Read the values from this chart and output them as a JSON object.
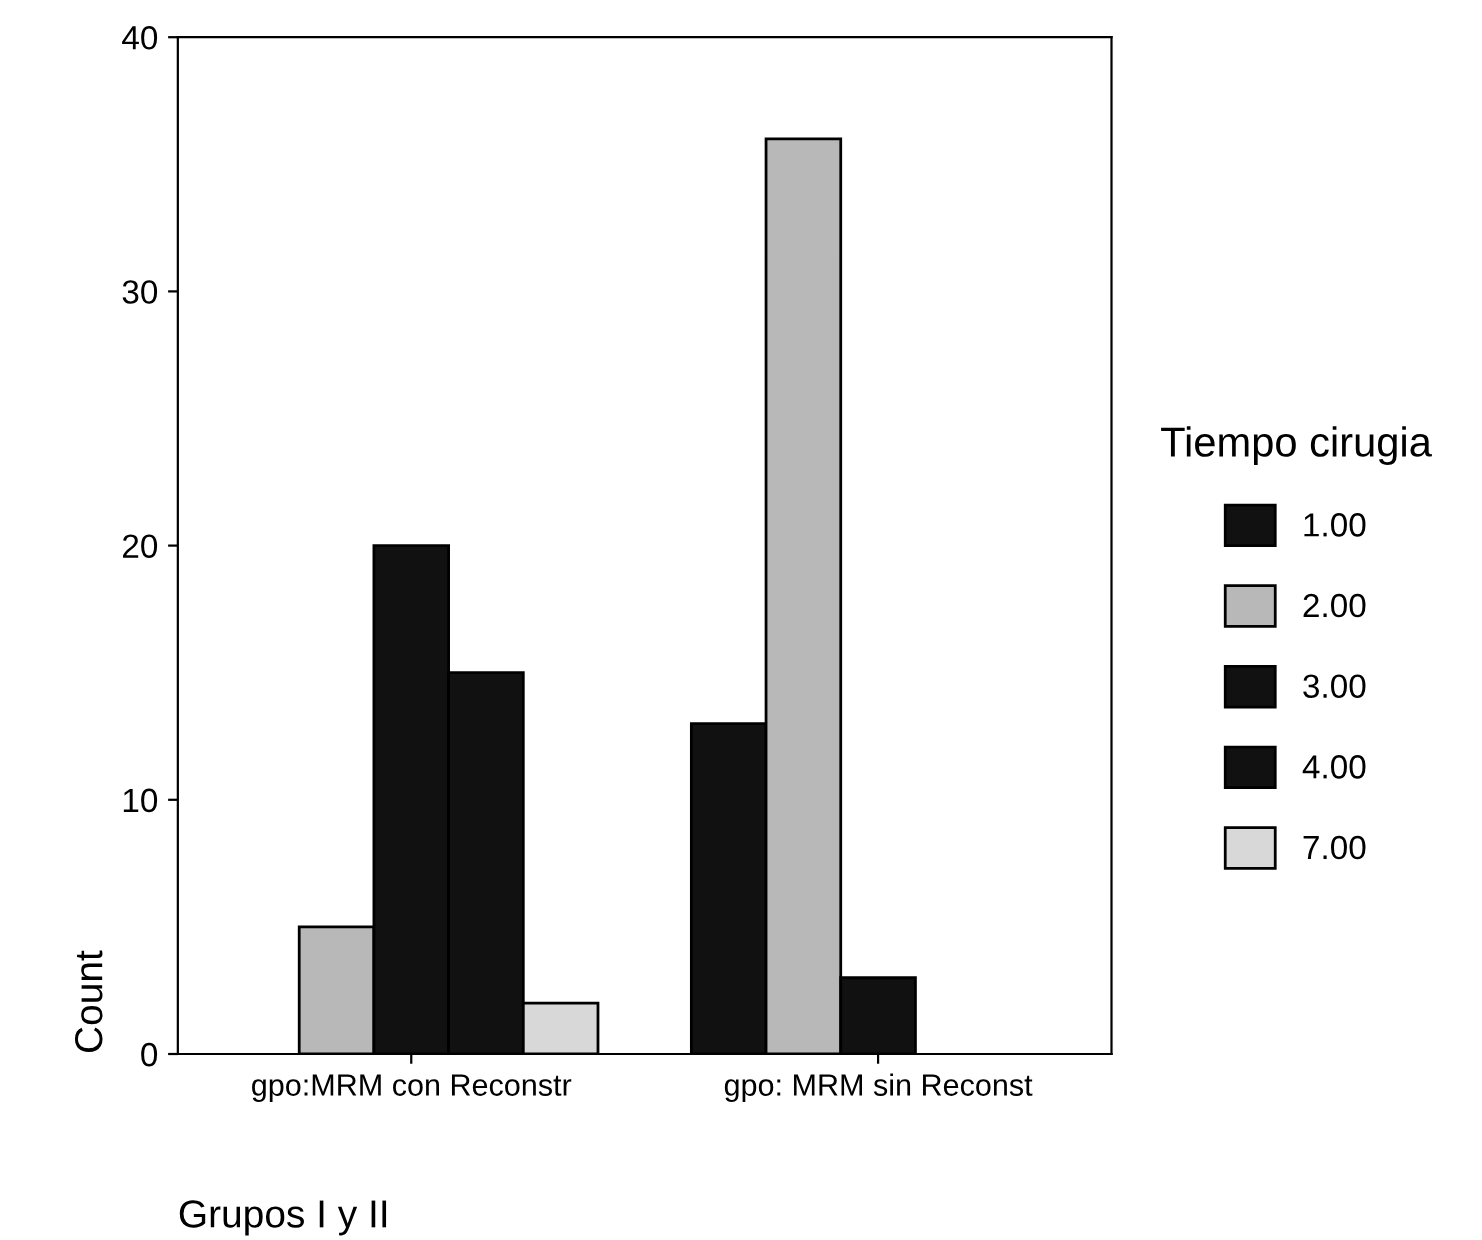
{
  "chart_data": {
    "type": "bar",
    "xlabel": "Grupos I y II",
    "ylabel": "Count",
    "legend_title": "Tiempo cirugia",
    "categories": [
      "gpo:MRM con Reconstr",
      "gpo: MRM sin Reconst"
    ],
    "series": [
      {
        "name": "1.00",
        "color": "#111111",
        "values": [
          null,
          13
        ]
      },
      {
        "name": "2.00",
        "color": "#b8b8b8",
        "values": [
          5,
          36
        ]
      },
      {
        "name": "3.00",
        "color": "#111111",
        "values": [
          20,
          3
        ]
      },
      {
        "name": "4.00",
        "color": "#111111",
        "values": [
          15,
          null
        ]
      },
      {
        "name": "7.00",
        "color": "#d8d8d8",
        "values": [
          2,
          null
        ]
      }
    ],
    "ylim": [
      0,
      40
    ],
    "yticks": [
      0,
      10,
      20,
      30,
      40
    ],
    "grid": false,
    "legend": "right"
  }
}
